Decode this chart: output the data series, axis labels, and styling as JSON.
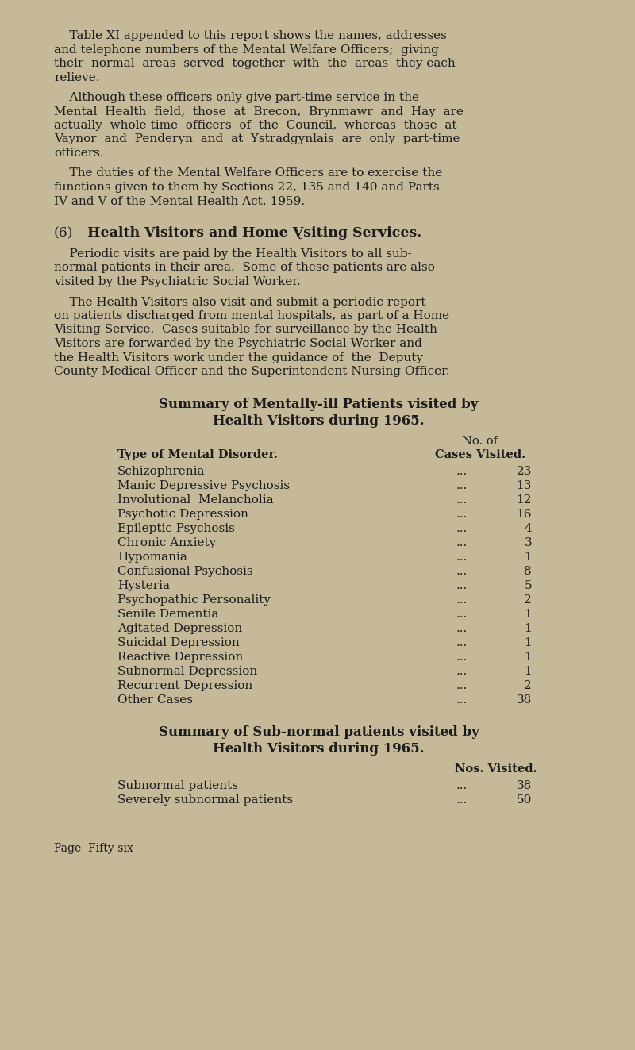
{
  "bg_color": "#c5b99a",
  "text_color": "#1c1c1c",
  "font_family": "DejaVu Serif",
  "para1_lines": [
    "    Table XI appended to this report shows the names, addresses",
    "and telephone numbers of the Mental Welfare Officers;  giving",
    "their  normal  areas  served  together  with  the  areas  they each",
    "relieve."
  ],
  "para2_lines": [
    "    Although these officers only give part-time service in the",
    "Mental  Health  field,  those  at  Brecon,  Brynmawr  and  Hay  are",
    "actually  whole-time  officers  of  the  Council,  whereas  those  at",
    "Vaynor  and  Penderyn  and  at  Ystradgynlais  are  only  part-time",
    "officers."
  ],
  "para3_lines": [
    "    The duties of the Mental Welfare Officers are to exercise the",
    "functions given to them by Sections 22, 135 and 140 and Parts",
    "IV and V of the Mental Health Act, 1959."
  ],
  "sec_header_num": "(6)",
  "sec_header_text": "Health Visitors and Home V̨siting Services.",
  "sec_para1_lines": [
    "    Periodic visits are paid by the Health Visitors to all sub-",
    "normal patients in their area.  Some of these patients are also",
    "visited by the Psychiatric Social Worker."
  ],
  "sec_para2_lines": [
    "    The Health Visitors also visit and submit a periodic report",
    "on patients discharged from mental hospitals, as part of a Home",
    "Visiting Service.  Cases suitable for surveillance by the Health",
    "Visitors are forwarded by the Psychiatric Social Worker and",
    "the Health Visitors work under the guidance of  the  Deputy",
    "County Medical Officer and the Superintendent Nursing Officer."
  ],
  "table1_title1": "Summary of Mentally-ill Patients visited by",
  "table1_title2": "Health Visitors during 1965.",
  "table1_col1_header": "Type of Mental Disorder.",
  "table1_col2_header1": "No. of",
  "table1_col2_header2": "Cases Visited.",
  "table1_rows": [
    [
      "Schizophrenia",
      "...",
      "23"
    ],
    [
      "Manic Depressive Psychosis",
      "...",
      "13"
    ],
    [
      "Involutional  Melancholia",
      "...",
      "12"
    ],
    [
      "Psychotic Depression",
      "...",
      "16"
    ],
    [
      "Epileptic Psychosis",
      "...",
      "4"
    ],
    [
      "Chronic Anxiety",
      "...",
      "3"
    ],
    [
      "Hypomania",
      "...",
      "1"
    ],
    [
      "Confusional Psychosis",
      "...",
      "8"
    ],
    [
      "Hysteria",
      "...",
      "5"
    ],
    [
      "Psychopathic Personality",
      "...",
      "2"
    ],
    [
      "Senile Dementia",
      "...",
      "1"
    ],
    [
      "Agitated Depression",
      "...",
      "1"
    ],
    [
      "Suicidal Depression",
      "...",
      "1"
    ],
    [
      "Reactive Depression",
      "...",
      "1"
    ],
    [
      "Subnormal Depression",
      "...",
      "1"
    ],
    [
      "Recurrent Depression",
      "...",
      "2"
    ],
    [
      "Other Cases",
      "...",
      "38"
    ]
  ],
  "table2_title1": "Summary of Sub-normal patients visited by",
  "table2_title2": "Health Visitors during 1965.",
  "table2_col_header": "Nos. Visited.",
  "table2_rows": [
    [
      "Subnormal patients",
      "...",
      "38"
    ],
    [
      "Severely subnormal patients",
      "...",
      "50"
    ]
  ],
  "footer": "Page  Fifty-six"
}
